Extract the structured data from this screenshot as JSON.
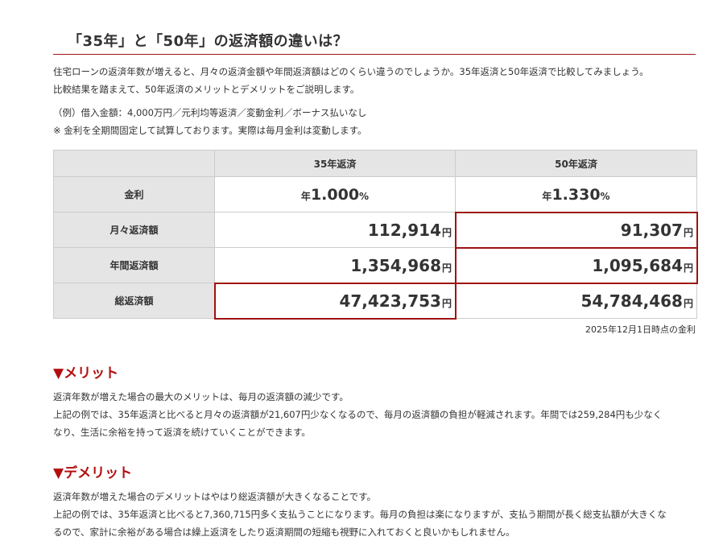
{
  "heading": "「35年」と「50年」の返済額の違いは？",
  "intro": [
    "住宅ローンの返済年数が増えると、月々の返済金額や年間返済額はどのくらい違うのでしょうか。35年返済と50年返済で比較してみましょう。",
    "比較結果を踏まえて、50年返済のメリットとデメリットをご説明します。"
  ],
  "example": [
    "（例）借入金額：4,000万円／元利均等返済／変動金利／ボーナス払いなし",
    "※ 金利を全期間固定して試算しております。実際は毎月金利は変動します。"
  ],
  "table": {
    "columns": [
      "",
      "35年返済",
      "50年返済"
    ],
    "rate_label": "金利",
    "rate_prefix": "年",
    "rate_suffix": "%",
    "rate_35": "1.000",
    "rate_50": "1.330",
    "yen": "円",
    "monthly_label": "月々返済額",
    "monthly_35": "112,914",
    "monthly_50": "91,307",
    "annual_label": "年間返済額",
    "annual_35": "1,354,968",
    "annual_50": "1,095,684",
    "total_label": "総返済額",
    "total_35": "47,423,753",
    "total_50": "54,784,468"
  },
  "as_of": "2025年12月1日時点の金利",
  "merit": {
    "title": "▼メリット",
    "lines": [
      "返済年数が増えた場合の最大のメリットは、毎月の返済額の減少です。",
      "上記の例では、35年返済と比べると月々の返済額が21,607円少なくなるので、毎月の返済額の負担が軽減されます。年間では259,284円も少なく",
      "なり、生活に余裕を持って返済を続けていくことができます。"
    ]
  },
  "demerit": {
    "title": "▼デメリット",
    "lines": [
      "返済年数が増えた場合のデメリットはやはり総返済額が大きくなることです。",
      "上記の例では、35年返済と比べると7,360,715円多く支払うことになります。毎月の負担は楽になりますが、支払う期間が長く総支払額が大きくな",
      "るので、家計に余裕がある場合は繰上返済をしたり返済期間の短縮も視野に入れておくと良いかもしれません。"
    ]
  },
  "colors": {
    "accent": "#b30f0f",
    "highlight_border": "#9e1212",
    "header_bg": "#e5e5e5"
  }
}
